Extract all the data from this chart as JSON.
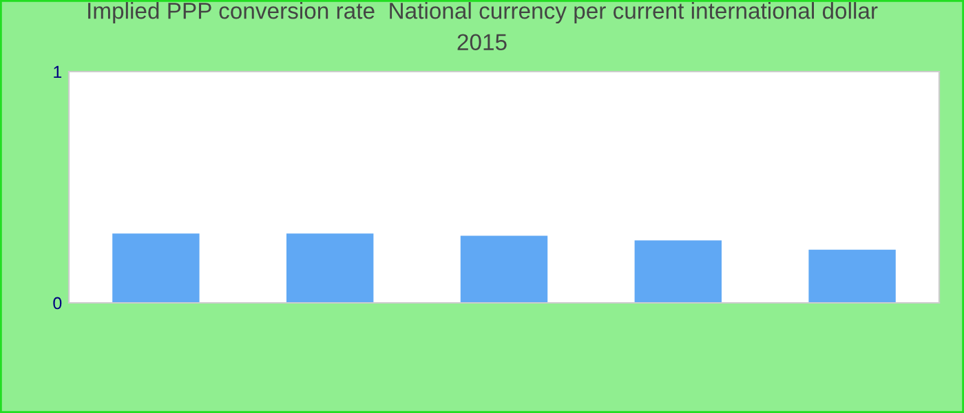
{
  "chart_data": {
    "type": "bar",
    "title": "Implied PPP conversion rate  National currency per current international dollar\n2015",
    "categories": [
      null,
      null,
      null,
      null,
      null
    ],
    "series": [
      {
        "color": "#60a8f4",
        "values": [
          0.3,
          0.3,
          0.29,
          0.27,
          0.23
        ]
      }
    ],
    "ylim": [
      0,
      1
    ],
    "yticks": [
      0,
      1
    ],
    "grid": false,
    "legend": false,
    "tick_labels": "y"
  }
}
